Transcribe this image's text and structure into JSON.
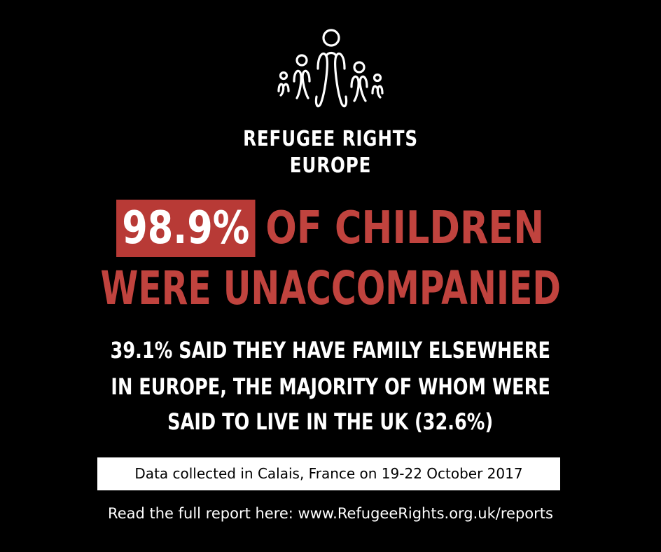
{
  "logo": {
    "icon": "family-figures-icon",
    "org_name_line1": "REFUGEE RIGHTS",
    "org_name_line2": "EUROPE"
  },
  "headline": {
    "stat": "98.9%",
    "line1_rest": "OF CHILDREN",
    "line2": "WERE UNACCOMPANIED"
  },
  "subtext": {
    "line1": "39.1% SAID THEY HAVE FAMILY ELSEWHERE",
    "line2": "IN EUROPE, THE MAJORITY OF WHOM WERE",
    "line3": "SAID TO LIVE IN THE UK (32.6%)"
  },
  "data_note": "Data collected in Calais, France on 19-22 October 2017",
  "report_link": "Read the full report here: www.RefugeeRights.org.uk/reports",
  "colors": {
    "background": "#000000",
    "accent_red": "#c0433e",
    "stat_box": "#b83a36",
    "text": "#ffffff"
  }
}
